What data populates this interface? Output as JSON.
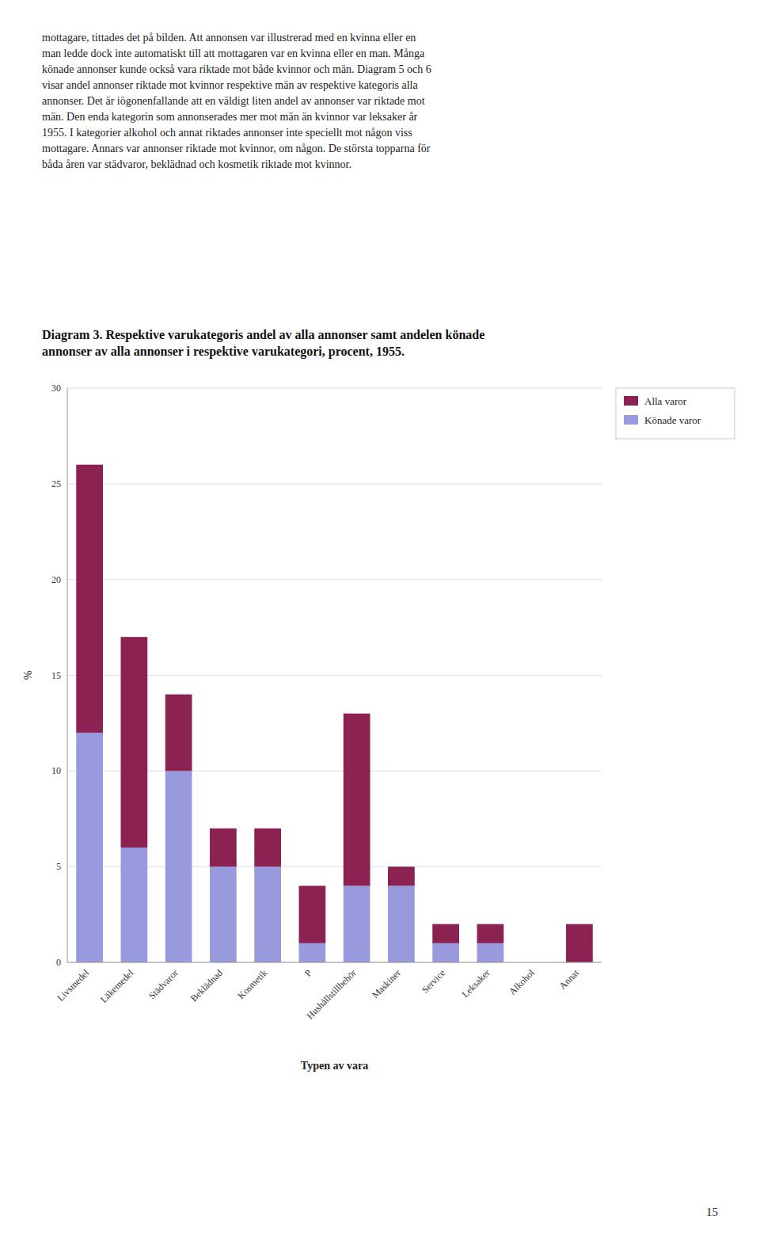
{
  "body_text": "mottagare, tittades det på bilden. Att annonsen var illustrerad med en kvinna eller en\nman ledde dock inte automatiskt till att mottagaren var en kvinna eller en man. Många\nkönade annonser kunde också vara riktade mot både kvinnor och män. Diagram 5 och 6\nvisar andel annonser riktade mot kvinnor respektive män av respektive kategoris alla\nannonser. Det är iögonenfallande att en väldigt liten andel av annonser var riktade mot\nmän. Den enda kategorin som annonserades mer mot män än kvinnor var leksaker år\n1955. I kategorier alkohol och annat riktades annonser inte speciellt mot någon viss\nmottagare. Annars var annonser riktade mot kvinnor, om någon. De största topparna för\nbåda åren var städvaror, beklädnad och kosmetik riktade mot kvinnor.",
  "page_number": "15",
  "chart_data": {
    "type": "bar",
    "stacked": true,
    "title": "Diagram 3. Respektive varukategoris andel av alla annonser samt andelen könade\nannonser av alla annonser i respektive varukategori, procent, 1955.",
    "x_label": "Typen av vara",
    "y_label": "%",
    "categories": [
      "Livsmedel",
      "Läkemedel",
      "Städvaror",
      "Beklädnad",
      "Kosmetik",
      "P",
      "Hushållstillbehör",
      "Maskiner",
      "Service",
      "Leksaker",
      "Alkohol",
      "Annat"
    ],
    "series": [
      {
        "name": "Könade varor",
        "color": "#9999DD",
        "values": [
          12,
          6,
          10,
          5,
          5,
          1,
          4,
          4,
          1,
          1,
          0,
          0
        ]
      },
      {
        "name": "Alla varor",
        "color": "#8B2252",
        "values": [
          14,
          11,
          4,
          2,
          2,
          3,
          9,
          1,
          1,
          1,
          0,
          2
        ]
      }
    ],
    "ylim": [
      0,
      30
    ],
    "yticks": [
      0,
      5,
      10,
      15,
      20,
      25,
      30
    ],
    "grid": true,
    "legend": "right"
  }
}
